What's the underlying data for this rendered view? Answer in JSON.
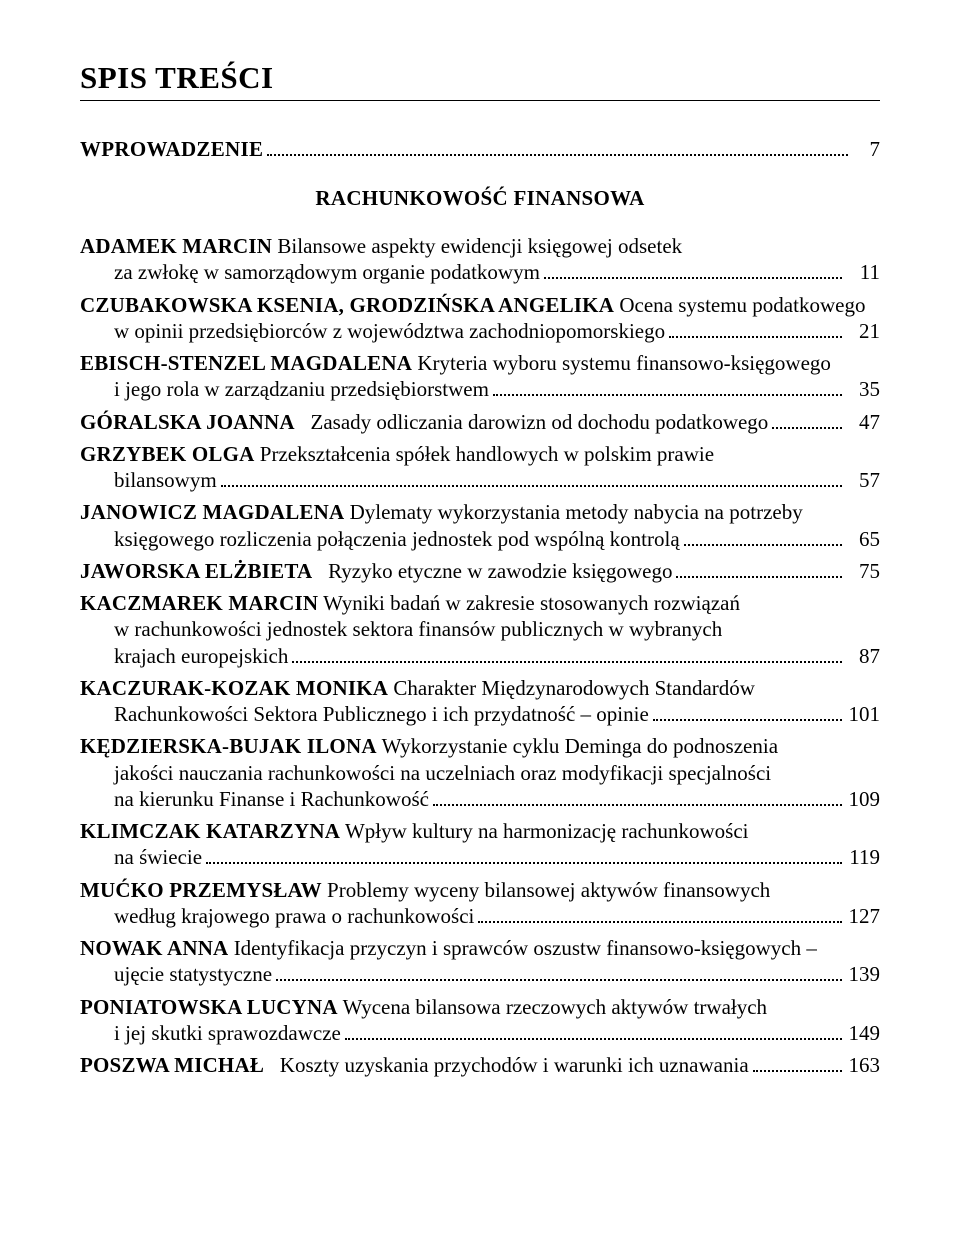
{
  "title": "SPIS TREŚCI",
  "intro": {
    "label": "WPROWADZENIE",
    "page": "7"
  },
  "section_heading": "RACHUNKOWOŚĆ FINANSOWA",
  "entries": [
    {
      "author": "ADAMEK MARCIN",
      "line1_after_author": "   Bilansowe aspekty ewidencji księgowej odsetek",
      "cont_lines": [],
      "last_text": "za zwłokę w samorządowym organie podatkowym",
      "last_indent": true,
      "page": "11"
    },
    {
      "author": "CZUBAKOWSKA KSENIA, GRODZIŃSKA ANGELIKA",
      "line1_after_author": "   Ocena systemu podatkowego",
      "cont_lines": [],
      "last_text": "w opinii przedsiębiorców z województwa zachodniopomorskiego",
      "last_indent": true,
      "page": "21"
    },
    {
      "author": "EBISCH-STENZEL MAGDALENA",
      "line1_after_author": "   Kryteria wyboru systemu finansowo-księgowego",
      "cont_lines": [],
      "last_text": "i jego rola w zarządzaniu przedsiębiorstwem",
      "last_indent": true,
      "page": "35"
    },
    {
      "author": "GÓRALSKA JOANNA",
      "line1_after_author": "",
      "cont_lines": [],
      "last_text": "   Zasady odliczania darowizn od dochodu podatkowego",
      "last_indent": false,
      "last_prepend_author": true,
      "page": "47"
    },
    {
      "author": "GRZYBEK OLGA",
      "line1_after_author": "   Przekształcenia spółek handlowych w polskim prawie",
      "cont_lines": [],
      "last_text": "bilansowym",
      "last_indent": true,
      "page": "57"
    },
    {
      "author": "JANOWICZ MAGDALENA",
      "line1_after_author": "   Dylematy wykorzystania metody nabycia na potrzeby",
      "cont_lines": [],
      "last_text": "księgowego rozliczenia połączenia jednostek pod wspólną kontrolą",
      "last_indent": true,
      "page": "65"
    },
    {
      "author": "JAWORSKA ELŻBIETA",
      "line1_after_author": "",
      "cont_lines": [],
      "last_text": "   Ryzyko etyczne w zawodzie księgowego",
      "last_indent": false,
      "last_prepend_author": true,
      "page": "75"
    },
    {
      "author": "KACZMAREK MARCIN",
      "line1_after_author": "   Wyniki badań w zakresie stosowanych rozwiązań",
      "cont_lines": [
        "w rachunkowości jednostek sektora finansów publicznych w wybranych"
      ],
      "last_text": "krajach europejskich",
      "last_indent": true,
      "page": "87"
    },
    {
      "author": "KACZURAK-KOZAK MONIKA",
      "line1_after_author": "   Charakter Międzynarodowych Standardów",
      "cont_lines": [],
      "last_text": "Rachunkowości Sektora Publicznego i ich przydatność – opinie",
      "last_indent": true,
      "page": "101"
    },
    {
      "author": "KĘDZIERSKA-BUJAK ILONA",
      "line1_after_author": "   Wykorzystanie cyklu Deminga do podnoszenia",
      "cont_lines": [
        "jakości nauczania rachunkowości na uczelniach oraz modyfikacji specjalności"
      ],
      "last_text": "na kierunku Finanse i Rachunkowość",
      "last_indent": true,
      "page": "109"
    },
    {
      "author": "KLIMCZAK KATARZYNA",
      "line1_after_author": "   Wpływ kultury na harmonizację rachunkowości",
      "cont_lines": [],
      "last_text": "na świecie",
      "last_indent": true,
      "page": "119"
    },
    {
      "author": "MUĆKO PRZEMYSŁAW",
      "line1_after_author": "   Problemy wyceny bilansowej aktywów finansowych",
      "cont_lines": [],
      "last_text": "według krajowego prawa o rachunkowości",
      "last_indent": true,
      "page": "127"
    },
    {
      "author": "NOWAK ANNA",
      "line1_after_author": "   Identyfikacja przyczyn i sprawców oszustw finansowo-księgowych –",
      "cont_lines": [],
      "last_text": "ujęcie statystyczne",
      "last_indent": true,
      "page": "139"
    },
    {
      "author": "PONIATOWSKA LUCYNA",
      "line1_after_author": "   Wycena bilansowa rzeczowych aktywów trwałych",
      "cont_lines": [],
      "last_text": "i jej skutki sprawozdawcze",
      "last_indent": true,
      "page": "149"
    },
    {
      "author": "POSZWA MICHAŁ",
      "line1_after_author": "",
      "cont_lines": [],
      "last_text": "   Koszty uzyskania przychodów i warunki ich uznawania",
      "last_indent": false,
      "last_prepend_author": true,
      "page": "163"
    }
  ],
  "colors": {
    "text": "#000000",
    "background": "#ffffff"
  },
  "typography": {
    "base_font": "Times New Roman",
    "title_size_pt": 23,
    "body_size_pt": 16
  }
}
